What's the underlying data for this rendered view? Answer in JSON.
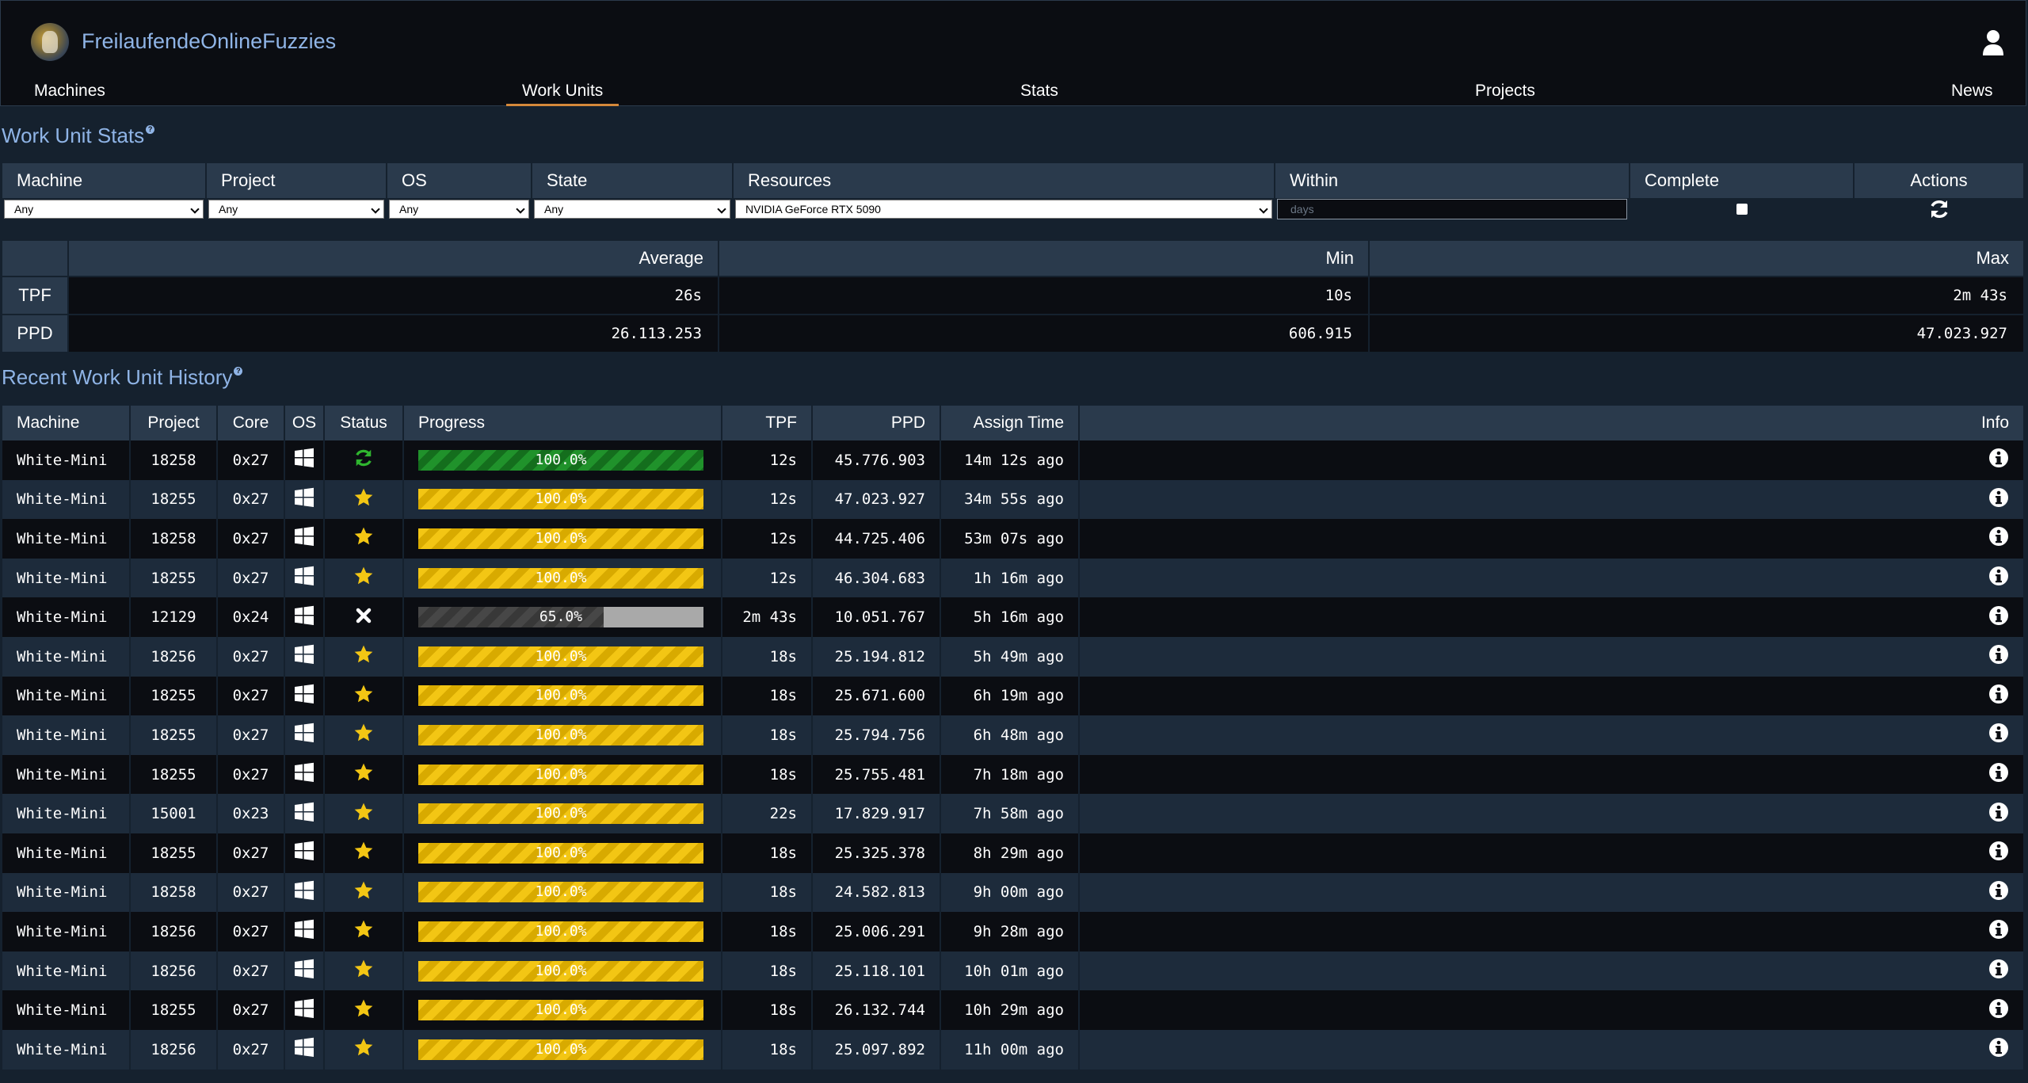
{
  "app": {
    "brand": "FreilaufendeOnlineFuzzies"
  },
  "nav": {
    "machines": "Machines",
    "work_units": "Work Units",
    "stats": "Stats",
    "projects": "Projects",
    "news": "News"
  },
  "work_unit_stats": {
    "title": "Work Unit Stats",
    "filters": {
      "headers": [
        "Machine",
        "Project",
        "OS",
        "State",
        "Resources",
        "Within",
        "Complete",
        "Actions"
      ],
      "machine": "Any",
      "project": "Any",
      "os": "Any",
      "state": "Any",
      "resources": "NVIDIA GeForce RTX 5090",
      "within_placeholder": "days",
      "complete_checked": false
    },
    "summary": {
      "headers": [
        "Average",
        "Min",
        "Max"
      ],
      "tpf": {
        "label": "TPF",
        "average": "26s",
        "min": "10s",
        "max": "2m 43s"
      },
      "ppd": {
        "label": "PPD",
        "average": "26.113.253",
        "min": "606.915",
        "max": "47.023.927"
      }
    }
  },
  "history": {
    "title": "Recent Work Unit History",
    "headers": [
      "Machine",
      "Project",
      "Core",
      "OS",
      "Status",
      "Progress",
      "TPF",
      "PPD",
      "Assign Time",
      "Info"
    ],
    "rows": [
      {
        "machine": "White-Mini",
        "project": "18258",
        "core": "0x27",
        "os": "windows-icon",
        "status": "running-icon",
        "progress": 1.0,
        "progress_label": "100.0%",
        "bar": "green",
        "tpf": "12s",
        "ppd": "45.776.903",
        "assign": "14m 12s ago"
      },
      {
        "machine": "White-Mini",
        "project": "18255",
        "core": "0x27",
        "os": "windows-icon",
        "status": "star-icon",
        "progress": 1.0,
        "progress_label": "100.0%",
        "bar": "gold",
        "tpf": "12s",
        "ppd": "47.023.927",
        "assign": "34m 55s ago"
      },
      {
        "machine": "White-Mini",
        "project": "18258",
        "core": "0x27",
        "os": "windows-icon",
        "status": "star-icon",
        "progress": 1.0,
        "progress_label": "100.0%",
        "bar": "gold",
        "tpf": "12s",
        "ppd": "44.725.406",
        "assign": "53m 07s ago"
      },
      {
        "machine": "White-Mini",
        "project": "18255",
        "core": "0x27",
        "os": "windows-icon",
        "status": "star-icon",
        "progress": 1.0,
        "progress_label": "100.0%",
        "bar": "gold",
        "tpf": "12s",
        "ppd": "46.304.683",
        "assign": "1h 16m ago"
      },
      {
        "machine": "White-Mini",
        "project": "12129",
        "core": "0x24",
        "os": "windows-icon",
        "status": "cross-icon",
        "progress": 0.65,
        "progress_label": "65.0%",
        "bar": "grey",
        "tpf": "2m 43s",
        "ppd": "10.051.767",
        "assign": "5h 16m ago"
      },
      {
        "machine": "White-Mini",
        "project": "18256",
        "core": "0x27",
        "os": "windows-icon",
        "status": "star-icon",
        "progress": 1.0,
        "progress_label": "100.0%",
        "bar": "gold",
        "tpf": "18s",
        "ppd": "25.194.812",
        "assign": "5h 49m ago"
      },
      {
        "machine": "White-Mini",
        "project": "18255",
        "core": "0x27",
        "os": "windows-icon",
        "status": "star-icon",
        "progress": 1.0,
        "progress_label": "100.0%",
        "bar": "gold",
        "tpf": "18s",
        "ppd": "25.671.600",
        "assign": "6h 19m ago"
      },
      {
        "machine": "White-Mini",
        "project": "18255",
        "core": "0x27",
        "os": "windows-icon",
        "status": "star-icon",
        "progress": 1.0,
        "progress_label": "100.0%",
        "bar": "gold",
        "tpf": "18s",
        "ppd": "25.794.756",
        "assign": "6h 48m ago"
      },
      {
        "machine": "White-Mini",
        "project": "18255",
        "core": "0x27",
        "os": "windows-icon",
        "status": "star-icon",
        "progress": 1.0,
        "progress_label": "100.0%",
        "bar": "gold",
        "tpf": "18s",
        "ppd": "25.755.481",
        "assign": "7h 18m ago"
      },
      {
        "machine": "White-Mini",
        "project": "15001",
        "core": "0x23",
        "os": "windows-icon",
        "status": "star-icon",
        "progress": 1.0,
        "progress_label": "100.0%",
        "bar": "gold",
        "tpf": "22s",
        "ppd": "17.829.917",
        "assign": "7h 58m ago"
      },
      {
        "machine": "White-Mini",
        "project": "18255",
        "core": "0x27",
        "os": "windows-icon",
        "status": "star-icon",
        "progress": 1.0,
        "progress_label": "100.0%",
        "bar": "gold",
        "tpf": "18s",
        "ppd": "25.325.378",
        "assign": "8h 29m ago"
      },
      {
        "machine": "White-Mini",
        "project": "18258",
        "core": "0x27",
        "os": "windows-icon",
        "status": "star-icon",
        "progress": 1.0,
        "progress_label": "100.0%",
        "bar": "gold",
        "tpf": "18s",
        "ppd": "24.582.813",
        "assign": "9h 00m ago"
      },
      {
        "machine": "White-Mini",
        "project": "18256",
        "core": "0x27",
        "os": "windows-icon",
        "status": "star-icon",
        "progress": 1.0,
        "progress_label": "100.0%",
        "bar": "gold",
        "tpf": "18s",
        "ppd": "25.006.291",
        "assign": "9h 28m ago"
      },
      {
        "machine": "White-Mini",
        "project": "18256",
        "core": "0x27",
        "os": "windows-icon",
        "status": "star-icon",
        "progress": 1.0,
        "progress_label": "100.0%",
        "bar": "gold",
        "tpf": "18s",
        "ppd": "25.118.101",
        "assign": "10h 01m ago"
      },
      {
        "machine": "White-Mini",
        "project": "18255",
        "core": "0x27",
        "os": "windows-icon",
        "status": "star-icon",
        "progress": 1.0,
        "progress_label": "100.0%",
        "bar": "gold",
        "tpf": "18s",
        "ppd": "26.132.744",
        "assign": "10h 29m ago"
      },
      {
        "machine": "White-Mini",
        "project": "18256",
        "core": "0x27",
        "os": "windows-icon",
        "status": "star-icon",
        "progress": 1.0,
        "progress_label": "100.0%",
        "bar": "gold",
        "tpf": "18s",
        "ppd": "25.097.892",
        "assign": "11h 00m ago"
      }
    ]
  },
  "colors": {
    "page_bg": "#15212e",
    "header_bg": "#2a3a4c",
    "accent_link": "#8fb4e6",
    "active_tab_underline": "#d4883a",
    "bar_gold": "#f3c614",
    "bar_green": "#20922b",
    "bar_grey": "#474747"
  }
}
